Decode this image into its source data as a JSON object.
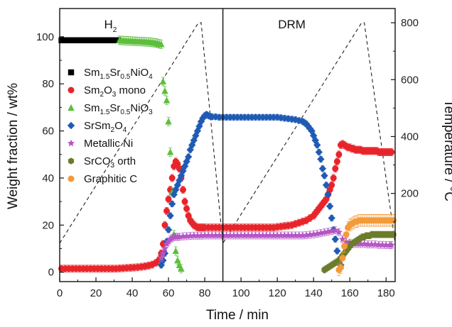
{
  "chart_data": {
    "type": "scatter",
    "xlabel": "Time / min",
    "ylabel": "Weight fraction / wt%",
    "y2label": "Temperature / °C",
    "xlim": [
      0,
      185
    ],
    "ylim": [
      -4,
      112
    ],
    "y2lim": [
      -110,
      850
    ],
    "xticks": [
      0,
      20,
      40,
      60,
      80,
      100,
      120,
      140,
      160,
      180
    ],
    "yticks": [
      0,
      20,
      40,
      60,
      80,
      100
    ],
    "y2ticks": [
      200,
      400,
      600,
      800
    ],
    "region_divider_x": 90,
    "regions": [
      {
        "base": "H",
        "sub": "2",
        "x": 28
      },
      {
        "base": "DRM",
        "sub": "",
        "x": 128
      }
    ],
    "legend_position": "left",
    "series": [
      {
        "name": "Sm1.5Sr0.5NiO4",
        "label_parts": [
          [
            "Sm",
            ""
          ],
          [
            "1.5",
            "sub"
          ],
          [
            "Sr",
            ""
          ],
          [
            "0.5",
            "sub"
          ],
          [
            "NiO",
            ""
          ],
          [
            "4",
            "sub"
          ]
        ],
        "color": "#000000",
        "marker": "square",
        "x": [
          1,
          2,
          3,
          4,
          5,
          6,
          7,
          8,
          9,
          10,
          11,
          12,
          13,
          14,
          15,
          16,
          17,
          18,
          19,
          20,
          21,
          22,
          23,
          24,
          25,
          26,
          27,
          28,
          29,
          30,
          31,
          32
        ],
        "y": [
          98.5,
          98.5,
          98.5,
          98.5,
          98.5,
          98.5,
          98.5,
          98.5,
          98.5,
          98.5,
          98.5,
          98.5,
          98.5,
          98.5,
          98.5,
          98.5,
          98.5,
          98.5,
          98.5,
          98.5,
          98.5,
          98.5,
          98.5,
          98.5,
          98.5,
          98.5,
          98.5,
          98.5,
          98.5,
          98.5,
          98.5,
          98.5
        ],
        "err": 0.6
      },
      {
        "name": "Sm2O3 mono",
        "label_parts": [
          [
            "Sm",
            ""
          ],
          [
            "2",
            "sub"
          ],
          [
            "O",
            ""
          ],
          [
            "3",
            "sub"
          ],
          [
            " mono",
            ""
          ]
        ],
        "color": "#e8242b",
        "marker": "circle",
        "x": [
          1,
          3,
          5,
          7,
          9,
          11,
          13,
          15,
          17,
          19,
          21,
          23,
          25,
          27,
          29,
          31,
          33,
          35,
          37,
          39,
          41,
          43,
          45,
          47,
          49,
          51,
          53,
          55,
          56,
          57,
          58,
          59,
          60,
          61,
          62,
          63,
          64,
          65,
          66,
          67,
          68,
          69,
          70,
          71,
          72,
          73,
          74,
          75,
          76,
          77,
          78,
          79,
          80,
          82,
          84,
          86,
          88,
          90,
          92,
          94,
          96,
          98,
          100,
          102,
          104,
          106,
          108,
          110,
          112,
          114,
          116,
          118,
          120,
          122,
          124,
          126,
          128,
          130,
          132,
          134,
          136,
          138,
          140,
          141,
          142,
          143,
          144,
          145,
          146,
          147,
          148,
          149,
          150,
          151,
          152,
          153,
          154,
          155,
          156,
          157,
          158,
          159,
          160,
          161,
          162,
          163,
          164,
          165,
          166,
          167,
          168,
          169,
          170,
          171,
          172,
          173,
          174,
          175,
          176,
          177,
          178,
          179,
          180,
          181,
          182,
          183
        ],
        "y": [
          1.5,
          1.5,
          1.5,
          1.5,
          1.5,
          1.5,
          1.5,
          1.5,
          1.5,
          1.5,
          1.5,
          1.5,
          1.5,
          1.5,
          1.5,
          1.5,
          1.6,
          1.7,
          1.8,
          1.9,
          2.0,
          2.1,
          2.3,
          2.5,
          2.8,
          3.2,
          4.0,
          5.5,
          8,
          12,
          20,
          26,
          31,
          35,
          40,
          45,
          47,
          46,
          44,
          40,
          35,
          30,
          27,
          24,
          22,
          21,
          20,
          19.5,
          19,
          19,
          19,
          19,
          19,
          19,
          19,
          19,
          19,
          19,
          19,
          19,
          19,
          19,
          19,
          19,
          19,
          19,
          19,
          19,
          19,
          19,
          19,
          19,
          19.2,
          19.4,
          19.6,
          19.8,
          20,
          20.5,
          21,
          21.5,
          22,
          23,
          24,
          25,
          26,
          27,
          28,
          29,
          30,
          31,
          33,
          35,
          37,
          40,
          44,
          47,
          50,
          54,
          54.5,
          54,
          53.5,
          53,
          53,
          52.5,
          52.5,
          52,
          52,
          52,
          52,
          51.5,
          51.5,
          51.5,
          51.5,
          51.5,
          51.5,
          51.5,
          51.5,
          51.5,
          51,
          51,
          51,
          51,
          51,
          51,
          51,
          51
        ],
        "err": 1.5
      },
      {
        "name": "Sm1.5Sr0.5NiO3",
        "label_parts": [
          [
            "Sm",
            ""
          ],
          [
            "1.5",
            "sub"
          ],
          [
            "Sr",
            ""
          ],
          [
            "0.5",
            "sub"
          ],
          [
            "NiO",
            ""
          ],
          [
            "3",
            "sub"
          ]
        ],
        "color": "#5cbf3c",
        "marker": "triangle",
        "x": [
          33,
          34,
          35,
          36,
          37,
          38,
          39,
          40,
          41,
          42,
          43,
          44,
          45,
          46,
          47,
          48,
          49,
          50,
          51,
          52,
          53,
          54,
          55,
          56,
          57,
          58,
          59,
          60,
          61,
          62,
          63,
          64,
          65,
          66,
          67
        ],
        "y": [
          98.5,
          98.4,
          98.4,
          98.3,
          98.3,
          98.2,
          98.2,
          98.2,
          98.1,
          98.1,
          98,
          98,
          98,
          97.9,
          97.9,
          97.8,
          97.8,
          97.7,
          97.6,
          97.5,
          97.4,
          97.2,
          97,
          96.8,
          81,
          77,
          73,
          64,
          51,
          34,
          16,
          9,
          5,
          3,
          1.5
        ],
        "err": 1.8
      },
      {
        "name": "SrSm2O4",
        "label_parts": [
          [
            "SrSm",
            ""
          ],
          [
            "2",
            "sub"
          ],
          [
            "O",
            ""
          ],
          [
            "4",
            "sub"
          ]
        ],
        "color": "#1f5bb5",
        "marker": "diamond",
        "x": [
          56,
          57,
          58,
          59,
          60,
          61,
          62,
          63,
          64,
          65,
          66,
          67,
          68,
          69,
          70,
          71,
          72,
          73,
          74,
          75,
          76,
          77,
          78,
          79,
          80,
          81,
          82,
          83,
          84,
          86,
          88,
          90,
          92,
          94,
          96,
          98,
          100,
          102,
          104,
          106,
          108,
          110,
          112,
          114,
          116,
          118,
          120,
          122,
          124,
          126,
          128,
          130,
          132,
          134,
          135,
          136,
          137,
          138,
          139,
          140,
          141,
          142,
          143,
          144,
          145,
          146,
          147,
          148,
          149,
          150,
          151,
          152,
          153,
          154,
          155
        ],
        "y": [
          3,
          5,
          8,
          13,
          18,
          24,
          29,
          33,
          35,
          37,
          39,
          41,
          43,
          45,
          47,
          49,
          52,
          54,
          56,
          58,
          60,
          62,
          64,
          65.5,
          66.5,
          67,
          66.5,
          66.2,
          66,
          66,
          65.8,
          65.8,
          65.8,
          65.8,
          65.8,
          65.8,
          65.8,
          65.8,
          65.8,
          65.8,
          65.8,
          65.8,
          65.8,
          65.8,
          65.8,
          65.8,
          65.8,
          65.6,
          65.4,
          65.2,
          65,
          64.8,
          64.4,
          64,
          63.5,
          63,
          62,
          61,
          60,
          58,
          56,
          54,
          51,
          48,
          44,
          41,
          37,
          33,
          28,
          23,
          18,
          14,
          9,
          5,
          3
        ],
        "err": 1.2
      },
      {
        "name": "Metallic Ni",
        "label_parts": [
          [
            "Metallic Ni",
            ""
          ]
        ],
        "color": "#b455c4",
        "marker": "star",
        "x": [
          56,
          57,
          58,
          59,
          60,
          61,
          62,
          63,
          64,
          65,
          66,
          68,
          70,
          72,
          74,
          76,
          78,
          80,
          82,
          84,
          86,
          88,
          90,
          92,
          94,
          96,
          98,
          100,
          102,
          104,
          106,
          108,
          110,
          112,
          114,
          116,
          118,
          120,
          122,
          124,
          126,
          128,
          130,
          132,
          134,
          136,
          138,
          140,
          142,
          144,
          146,
          148,
          150,
          152,
          154,
          156,
          158,
          160,
          162,
          164,
          166,
          168,
          170,
          172,
          174,
          176,
          178,
          180,
          182,
          183
        ],
        "y": [
          6,
          8,
          10,
          12,
          13,
          14,
          14.5,
          15,
          15,
          15,
          15,
          15.2,
          15.3,
          15.4,
          15.5,
          15.5,
          15.5,
          15.6,
          15.6,
          15.6,
          15.6,
          15.6,
          15.6,
          15.6,
          15.6,
          15.6,
          15.6,
          15.6,
          15.6,
          15.6,
          15.6,
          15.6,
          15.6,
          15.6,
          15.6,
          15.6,
          15.6,
          15.6,
          15.6,
          15.6,
          15.6,
          15.6,
          15.6,
          15.6,
          15.6,
          15.7,
          15.9,
          16.1,
          16.3,
          16.6,
          16.9,
          17.2,
          17.5,
          17.8,
          17,
          14,
          13,
          12.5,
          12,
          12,
          12,
          12,
          11.8,
          11.8,
          11.8,
          11.6,
          11.6,
          11.5,
          11.5,
          11.5
        ],
        "err": 1.5
      },
      {
        "name": "SrCO3 orth",
        "label_parts": [
          [
            "SrCO",
            ""
          ],
          [
            "3",
            "sub"
          ],
          [
            " orth",
            ""
          ]
        ],
        "color": "#6b7c2a",
        "marker": "hexagon",
        "x": [
          146,
          147,
          148,
          149,
          150,
          151,
          152,
          153,
          154,
          155,
          156,
          157,
          158,
          159,
          160,
          161,
          162,
          163,
          164,
          165,
          166,
          167,
          168,
          169,
          170,
          171,
          172,
          173,
          174,
          175,
          176,
          177,
          178,
          179,
          180,
          181,
          182,
          183,
          184
        ],
        "y": [
          1,
          1.5,
          2,
          2.5,
          3,
          3.5,
          4,
          4.5,
          5,
          6,
          7,
          8,
          9,
          10,
          11,
          12,
          12.5,
          13,
          13.5,
          14,
          14.5,
          15,
          15,
          15.5,
          15.5,
          15.5,
          16,
          16,
          16,
          16,
          16,
          16,
          16,
          16,
          16,
          16,
          16,
          16,
          16
        ],
        "err": 1.3
      },
      {
        "name": "Graphitic C",
        "label_parts": [
          [
            "Graphitic C",
            ""
          ]
        ],
        "color": "#f39a3a",
        "marker": "circle",
        "x": [
          154,
          155,
          156,
          157,
          158,
          159,
          160,
          161,
          162,
          163,
          164,
          165,
          166,
          167,
          168,
          169,
          170,
          171,
          172,
          173,
          174,
          175,
          176,
          177,
          178,
          179,
          180,
          181,
          182,
          183,
          184
        ],
        "y": [
          1,
          2,
          6,
          11,
          16,
          19,
          20,
          20.5,
          21,
          21.5,
          21.5,
          22,
          22,
          22,
          22,
          22,
          22,
          22,
          22,
          22,
          22,
          22,
          22,
          22,
          22,
          22,
          22,
          22,
          22,
          22,
          22
        ],
        "err": 2.5
      }
    ],
    "temperature_profile": {
      "x": [
        0,
        76.5,
        78,
        90,
        90,
        166.5,
        168,
        185
      ],
      "y": [
        25,
        800,
        800,
        25,
        25,
        800,
        800,
        25
      ]
    }
  }
}
